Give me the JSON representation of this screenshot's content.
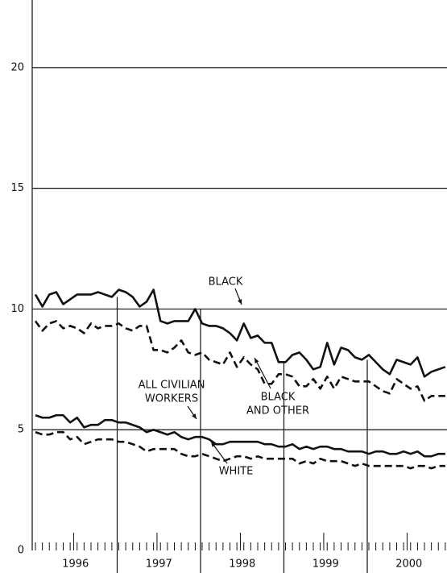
{
  "chart_data": {
    "type": "line",
    "categories": [
      null,
      null,
      null,
      null,
      null,
      null,
      "1996",
      null,
      null,
      null,
      null,
      null,
      null,
      null,
      null,
      null,
      null,
      null,
      "1997",
      null,
      null,
      null,
      null,
      null,
      null,
      null,
      null,
      null,
      null,
      null,
      "1998",
      null,
      null,
      null,
      null,
      null,
      null,
      null,
      null,
      null,
      null,
      null,
      "1999",
      null,
      null,
      null,
      null,
      null,
      null,
      null,
      null,
      null,
      null,
      null,
      "2000",
      null,
      null,
      null,
      null,
      null
    ],
    "ylim": [
      0,
      22.8
    ],
    "yticks": [
      0,
      5,
      10,
      15,
      20
    ],
    "grid": true,
    "series": [
      {
        "label": [
          "BLACK"
        ],
        "color": "#111111",
        "dash": false,
        "values": [
          10.6,
          10.1,
          10.6,
          10.7,
          10.2,
          10.4,
          10.6,
          10.6,
          10.6,
          10.7,
          10.6,
          10.5,
          10.8,
          10.7,
          10.5,
          10.1,
          10.3,
          10.8,
          9.5,
          9.4,
          9.5,
          9.5,
          9.5,
          10.0,
          9.4,
          9.3,
          9.3,
          9.2,
          9.0,
          8.7,
          9.4,
          8.8,
          8.9,
          8.6,
          8.6,
          7.8,
          7.8,
          8.1,
          8.2,
          7.9,
          7.5,
          7.6,
          8.6,
          7.7,
          8.4,
          8.3,
          8.0,
          7.9,
          8.1,
          7.8,
          7.5,
          7.3,
          7.9,
          7.8,
          7.7,
          8.0,
          7.2,
          7.4,
          7.5,
          7.6
        ]
      },
      {
        "label": [
          "BLACK",
          "AND OTHER"
        ],
        "color": "#111111",
        "dash": true,
        "values": [
          9.5,
          9.1,
          9.4,
          9.5,
          9.2,
          9.3,
          9.2,
          9.0,
          9.4,
          9.2,
          9.3,
          9.3,
          9.4,
          9.2,
          9.1,
          9.3,
          9.3,
          8.3,
          8.3,
          8.2,
          8.4,
          8.7,
          8.2,
          8.1,
          8.2,
          7.9,
          7.8,
          7.7,
          8.2,
          7.6,
          8.0,
          7.7,
          7.5,
          6.9,
          6.9,
          7.3,
          7.3,
          7.2,
          6.8,
          6.8,
          7.1,
          6.7,
          7.2,
          6.7,
          7.2,
          7.1,
          7.0,
          7.0,
          7.0,
          6.8,
          6.6,
          6.5,
          7.1,
          6.9,
          6.7,
          6.8,
          6.2,
          6.4,
          6.4,
          6.4
        ]
      },
      {
        "label": [
          "ALL CIVILIAN",
          "WORKERS"
        ],
        "color": "#111111",
        "dash": false,
        "values": [
          5.6,
          5.5,
          5.5,
          5.6,
          5.6,
          5.3,
          5.5,
          5.1,
          5.2,
          5.2,
          5.4,
          5.4,
          5.3,
          5.3,
          5.2,
          5.1,
          4.9,
          5.0,
          4.9,
          4.8,
          4.9,
          4.7,
          4.6,
          4.7,
          4.7,
          4.6,
          4.4,
          4.4,
          4.5,
          4.5,
          4.5,
          4.5,
          4.5,
          4.4,
          4.4,
          4.3,
          4.3,
          4.4,
          4.2,
          4.3,
          4.2,
          4.3,
          4.3,
          4.2,
          4.2,
          4.1,
          4.1,
          4.1,
          4.0,
          4.1,
          4.1,
          4.0,
          4.0,
          4.1,
          4.0,
          4.1,
          3.9,
          3.9,
          4.0,
          4.0
        ]
      },
      {
        "label": [
          "WHITE"
        ],
        "color": "#111111",
        "dash": true,
        "values": [
          4.9,
          4.8,
          4.8,
          4.9,
          4.9,
          4.6,
          4.7,
          4.4,
          4.5,
          4.6,
          4.6,
          4.6,
          4.5,
          4.5,
          4.4,
          4.3,
          4.1,
          4.2,
          4.2,
          4.2,
          4.2,
          4.0,
          3.9,
          3.9,
          4.0,
          3.9,
          3.8,
          3.7,
          3.8,
          3.9,
          3.9,
          3.8,
          3.9,
          3.8,
          3.8,
          3.8,
          3.8,
          3.8,
          3.6,
          3.7,
          3.6,
          3.8,
          3.7,
          3.7,
          3.7,
          3.6,
          3.5,
          3.6,
          3.5,
          3.5,
          3.5,
          3.5,
          3.5,
          3.5,
          3.4,
          3.5,
          3.5,
          3.4,
          3.5,
          3.5
        ]
      }
    ]
  }
}
